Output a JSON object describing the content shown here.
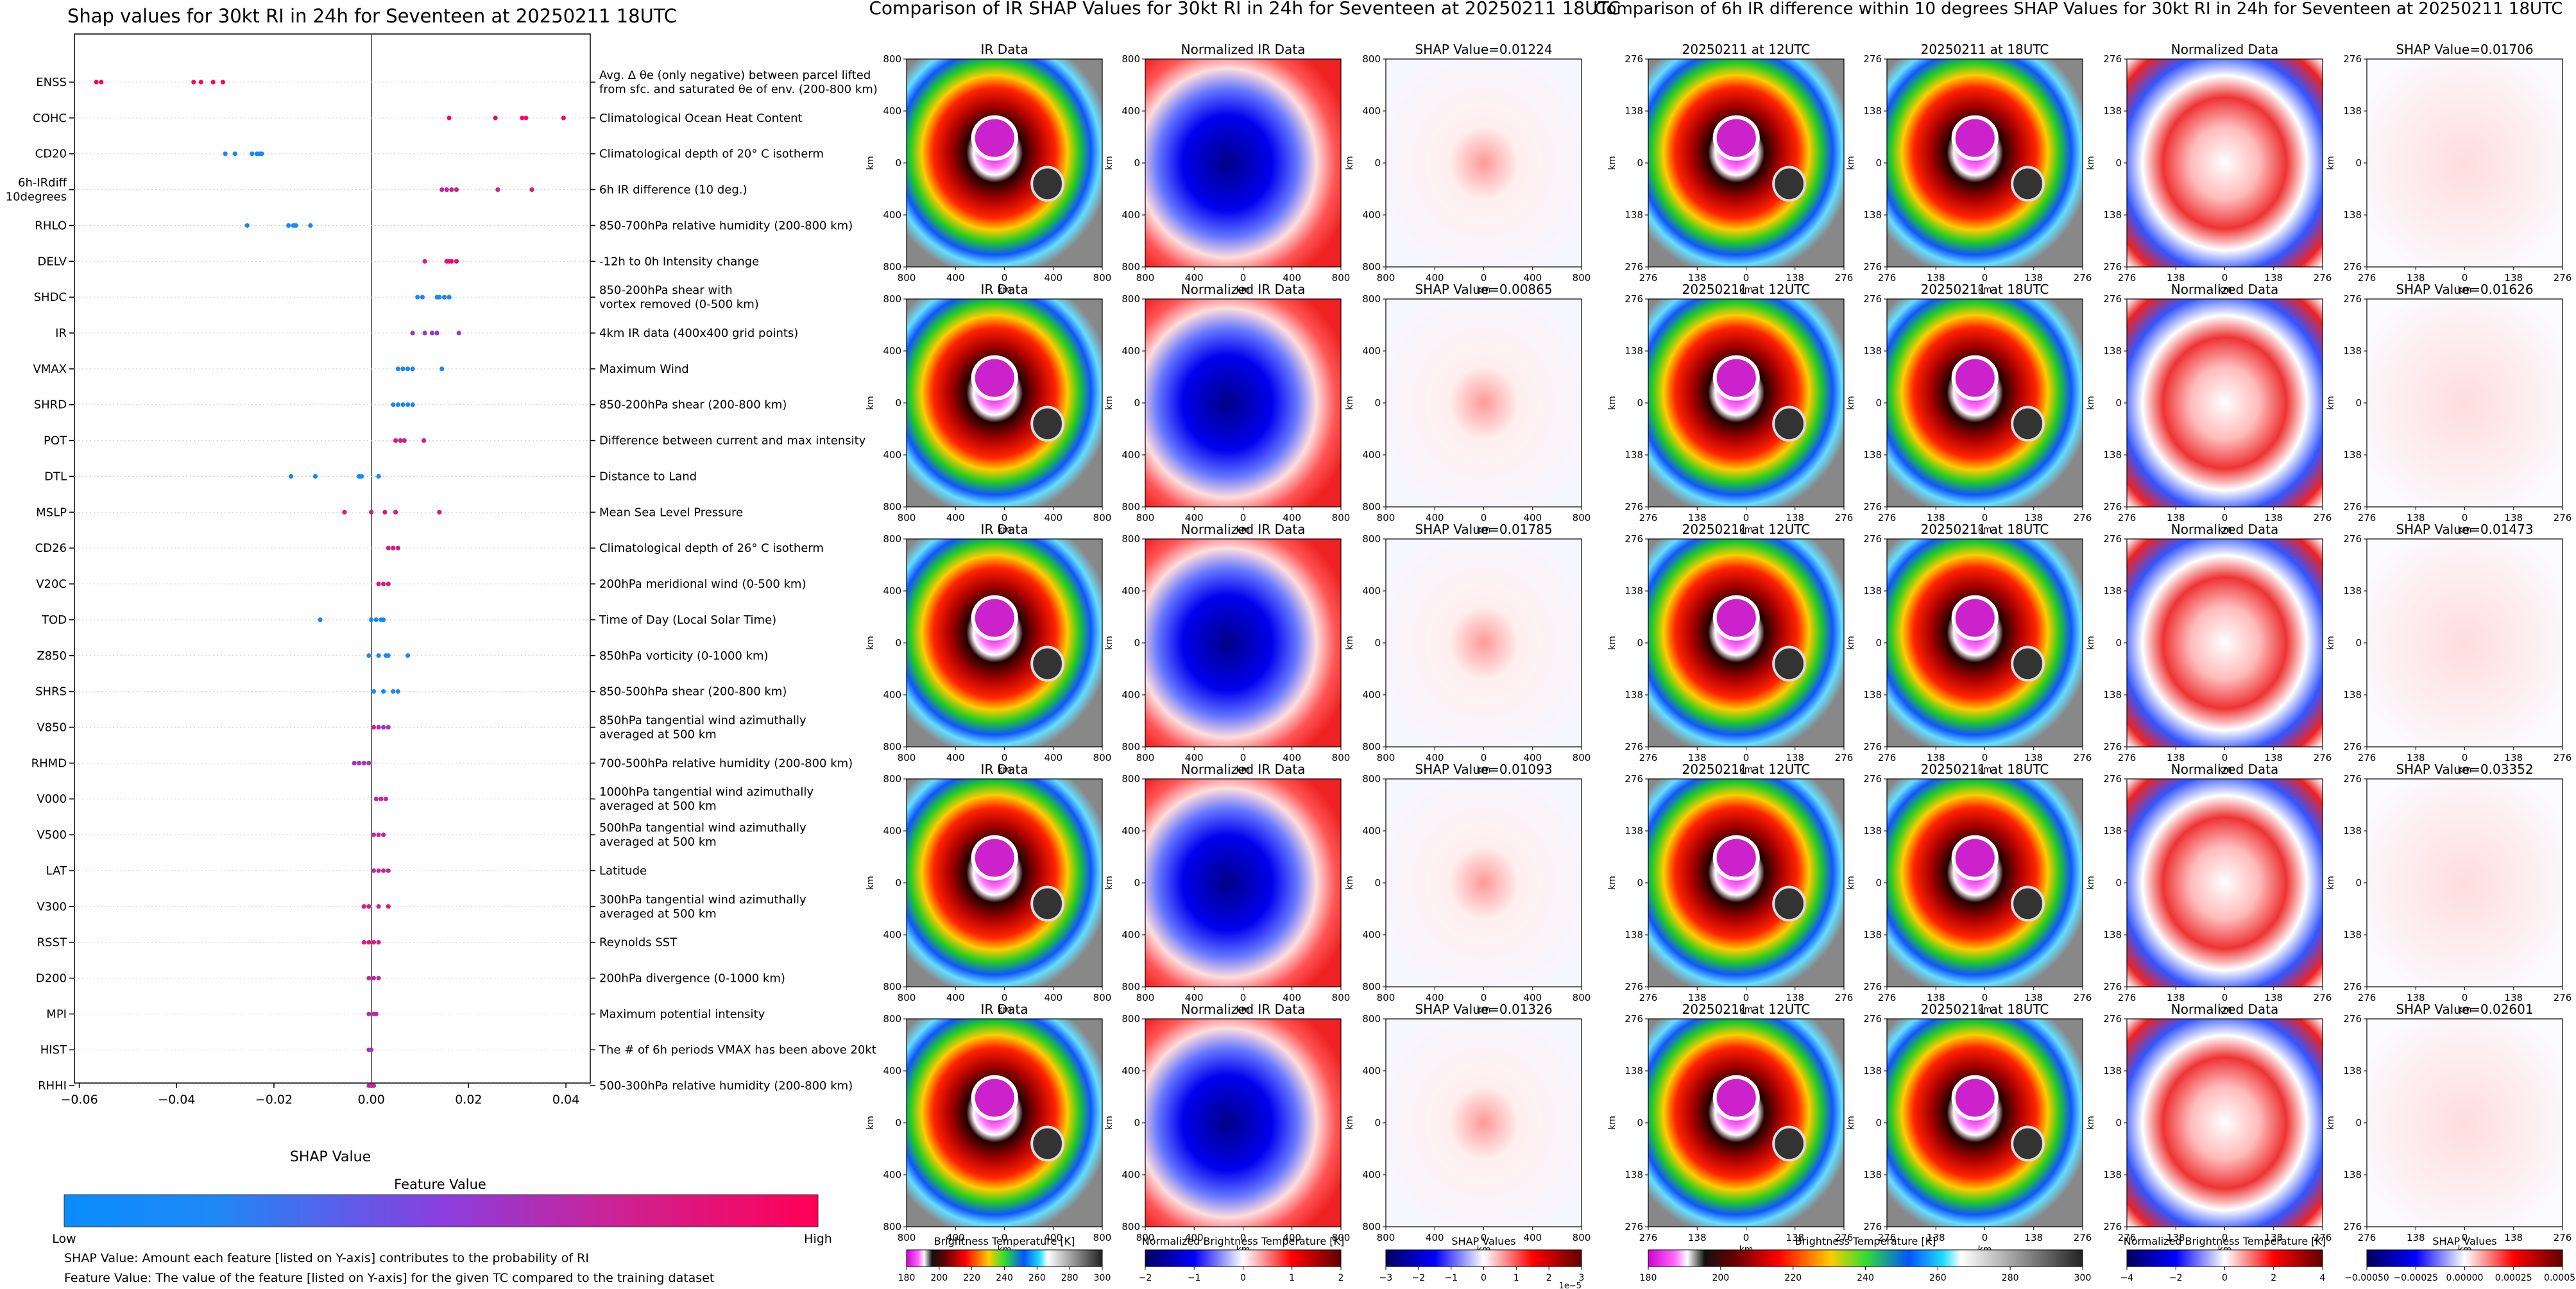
{
  "left_panel": {
    "title": "Shap values for 30kt RI in 24h for Seventeen at 20250211 18UTC",
    "xlabel": "SHAP Value",
    "colorbar_title": "Feature Value",
    "colorbar_low": "Low",
    "colorbar_high": "High",
    "note1": "SHAP Value: Amount each feature [listed on Y-axis] contributes to the probability of RI",
    "note2": "Feature Value: The value of the feature [listed on Y-axis] for the given TC compared to the training dataset"
  },
  "middle_panel": {
    "title": "Comparison of IR SHAP Values for 30kt RI in 24h for Seventeen at 20250211 18UTC",
    "col_titles": [
      "IR Data",
      "Normalized IR Data"
    ],
    "shap_titles": [
      "SHAP Value=0.01224",
      "SHAP Value=0.00865",
      "SHAP Value=0.01785",
      "SHAP Value=0.01093",
      "SHAP Value=0.01326"
    ],
    "axis_label": "km",
    "ticks": [
      "800",
      "400",
      "0",
      "400",
      "800"
    ],
    "cbars": [
      {
        "label": "Brightness Temperature [K]",
        "ticks": [
          "180",
          "200",
          "220",
          "240",
          "260",
          "280",
          "300"
        ]
      },
      {
        "label": "Normalized Brightness Temperature [K]",
        "ticks": [
          "−2",
          "−1",
          "0",
          "1",
          "2"
        ]
      },
      {
        "label": "SHAP Values",
        "ticks": [
          "−3",
          "−2",
          "−1",
          "0",
          "1",
          "2",
          "3"
        ],
        "offset": "1e−5"
      }
    ]
  },
  "right_panel": {
    "title": "Comparison of 6h IR difference within 10 degrees SHAP Values for 30kt RI in 24h for Seventeen at 20250211 18UTC",
    "col_titles": [
      "20250211 at 12UTC",
      "20250211 at 18UTC",
      "Normalized Data"
    ],
    "shap_titles": [
      "SHAP Value=0.01706",
      "SHAP Value=0.01626",
      "SHAP Value=0.01473",
      "SHAP Value=0.03352",
      "SHAP Value=0.02601"
    ],
    "axis_label": "km",
    "ticks": [
      "276",
      "138",
      "0",
      "138",
      "276"
    ],
    "cbars": [
      {
        "label": "Brightness Temperature [K]",
        "ticks": [
          "180",
          "200",
          "220",
          "240",
          "260",
          "280",
          "300"
        ]
      },
      {
        "label": "Normalized Brightness Temperature [K]",
        "ticks": [
          "−4",
          "−2",
          "0",
          "2",
          "4"
        ]
      },
      {
        "label": "SHAP Values",
        "ticks": [
          "−0.00050",
          "−0.00025",
          "0.00000",
          "0.00025",
          "0.00050"
        ]
      }
    ]
  },
  "chart_data": {
    "type": "scatter",
    "title": "Shap values for 30kt RI in 24h for Seventeen at 20250211 18UTC",
    "xlabel": "SHAP Value",
    "xlim": [
      -0.061,
      0.045
    ],
    "xticks": [
      -0.06,
      -0.04,
      -0.02,
      0.0,
      0.02,
      0.04
    ],
    "xtick_labels": [
      "−0.06",
      "−0.04",
      "−0.02",
      "0.00",
      "0.02",
      "0.04"
    ],
    "grid": "horizontal dotted",
    "features": [
      {
        "name": "ENSS",
        "desc": [
          "Avg. Δ θe (only negative) between parcel lifted",
          "from sfc. and saturated θe of env. (200-800 km)"
        ],
        "points": [
          [
            -0.0565,
            1.0
          ],
          [
            -0.0555,
            0.98
          ],
          [
            -0.0365,
            0.98
          ],
          [
            -0.035,
            0.96
          ],
          [
            -0.0325,
            0.97
          ],
          [
            -0.0305,
            1.0
          ]
        ]
      },
      {
        "name": "COHC",
        "desc": [
          "Climatological Ocean Heat Content"
        ],
        "points": [
          [
            0.016,
            0.92
          ],
          [
            0.0255,
            0.95
          ],
          [
            0.031,
            0.93
          ],
          [
            0.0318,
            0.95
          ],
          [
            0.0395,
            0.97
          ]
        ]
      },
      {
        "name": "CD20",
        "desc": [
          "Climatological depth of 20° C isotherm"
        ],
        "points": [
          [
            -0.03,
            0.05
          ],
          [
            -0.028,
            0.05
          ],
          [
            -0.0245,
            0.1
          ],
          [
            -0.0235,
            0.08
          ],
          [
            -0.023,
            0.1
          ],
          [
            -0.0225,
            0.09
          ]
        ]
      },
      {
        "name": "6h-IRdiff\n10degrees",
        "desc": [
          "6h IR difference (10 deg.)"
        ],
        "points": [
          [
            0.0145,
            0.7
          ],
          [
            0.0155,
            0.7
          ],
          [
            0.0165,
            0.72
          ],
          [
            0.0175,
            0.7
          ],
          [
            0.026,
            0.75
          ],
          [
            0.033,
            0.78
          ]
        ]
      },
      {
        "name": "RHLO",
        "desc": [
          "850-700hPa relative humidity (200-800 km)"
        ],
        "points": [
          [
            -0.0255,
            0.1
          ],
          [
            -0.017,
            0.08
          ],
          [
            -0.016,
            0.06
          ],
          [
            -0.0155,
            0.1
          ],
          [
            -0.0125,
            0.08
          ]
        ]
      },
      {
        "name": "DELV",
        "desc": [
          "-12h to 0h Intensity change"
        ],
        "points": [
          [
            0.011,
            0.75
          ],
          [
            0.0155,
            0.9
          ],
          [
            0.016,
            0.9
          ],
          [
            0.0165,
            0.92
          ],
          [
            0.0175,
            0.9
          ]
        ]
      },
      {
        "name": "SHDC",
        "desc": [
          "850-200hPa shear with",
          "vortex removed (0-500 km)"
        ],
        "points": [
          [
            0.0095,
            0.2
          ],
          [
            0.0105,
            0.2
          ],
          [
            0.0135,
            0.15
          ],
          [
            0.014,
            0.15
          ],
          [
            0.015,
            0.15
          ],
          [
            0.016,
            0.15
          ]
        ]
      },
      {
        "name": "IR",
        "desc": [
          "4km IR data (400x400 grid points)"
        ],
        "points": [
          [
            0.0085,
            0.55
          ],
          [
            0.011,
            0.55
          ],
          [
            0.0125,
            0.55
          ],
          [
            0.0135,
            0.55
          ],
          [
            0.018,
            0.5
          ]
        ]
      },
      {
        "name": "VMAX",
        "desc": [
          "Maximum Wind"
        ],
        "points": [
          [
            0.0055,
            0.2
          ],
          [
            0.0065,
            0.2
          ],
          [
            0.0075,
            0.2
          ],
          [
            0.0085,
            0.2
          ],
          [
            0.0145,
            0.15
          ]
        ]
      },
      {
        "name": "SHRD",
        "desc": [
          "850-200hPa shear (200-800 km)"
        ],
        "points": [
          [
            0.0045,
            0.2
          ],
          [
            0.0055,
            0.2
          ],
          [
            0.0065,
            0.2
          ],
          [
            0.0075,
            0.2
          ],
          [
            0.0085,
            0.2
          ]
        ]
      },
      {
        "name": "POT",
        "desc": [
          "Difference between current and max intensity"
        ],
        "points": [
          [
            0.005,
            0.8
          ],
          [
            0.006,
            0.8
          ],
          [
            0.0068,
            0.8
          ],
          [
            0.0108,
            0.75
          ]
        ]
      },
      {
        "name": "DTL",
        "desc": [
          "Distance to Land"
        ],
        "points": [
          [
            -0.0165,
            0.1
          ],
          [
            -0.0115,
            0.1
          ],
          [
            -0.0025,
            0.1
          ],
          [
            -0.002,
            0.1
          ],
          [
            0.0015,
            0.1
          ]
        ]
      },
      {
        "name": "MSLP",
        "desc": [
          "Mean Sea Level Pressure"
        ],
        "points": [
          [
            -0.0055,
            0.8
          ],
          [
            0.0,
            0.8
          ],
          [
            0.0028,
            0.8
          ],
          [
            0.005,
            0.8
          ],
          [
            0.014,
            0.8
          ]
        ]
      },
      {
        "name": "CD26",
        "desc": [
          "Climatological depth of 26° C isotherm"
        ],
        "points": [
          [
            0.0035,
            0.8
          ],
          [
            0.0045,
            0.8
          ],
          [
            0.0055,
            0.8
          ]
        ]
      },
      {
        "name": "V20C",
        "desc": [
          "200hPa meridional wind (0-500 km)"
        ],
        "points": [
          [
            0.0015,
            0.8
          ],
          [
            0.0025,
            0.8
          ],
          [
            0.0035,
            0.8
          ]
        ]
      },
      {
        "name": "TOD",
        "desc": [
          "Time of Day (Local Solar Time)"
        ],
        "points": [
          [
            -0.0105,
            0.1
          ],
          [
            0.0,
            0.1
          ],
          [
            0.001,
            0.1
          ],
          [
            0.002,
            0.1
          ],
          [
            0.0025,
            0.1
          ]
        ]
      },
      {
        "name": "Z850",
        "desc": [
          "850hPa vorticity (0-1000 km)"
        ],
        "points": [
          [
            -0.0005,
            0.15
          ],
          [
            0.0015,
            0.1
          ],
          [
            0.003,
            0.1
          ],
          [
            0.0035,
            0.1
          ],
          [
            0.0075,
            0.1
          ]
        ]
      },
      {
        "name": "SHRS",
        "desc": [
          "850-500hPa shear (200-800 km)"
        ],
        "points": [
          [
            0.0005,
            0.15
          ],
          [
            0.0025,
            0.15
          ],
          [
            0.0045,
            0.15
          ],
          [
            0.0055,
            0.15
          ]
        ]
      },
      {
        "name": "V850",
        "desc": [
          "850hPa tangential wind azimuthally",
          "averaged at 500 km"
        ],
        "points": [
          [
            0.0005,
            0.8
          ],
          [
            0.0015,
            0.7
          ],
          [
            0.0025,
            0.6
          ],
          [
            0.0035,
            0.6
          ]
        ]
      },
      {
        "name": "RHMD",
        "desc": [
          "700-500hPa relative humidity (200-800 km)"
        ],
        "points": [
          [
            -0.0035,
            0.6
          ],
          [
            -0.0025,
            0.6
          ],
          [
            -0.0015,
            0.6
          ],
          [
            -0.0005,
            0.6
          ]
        ]
      },
      {
        "name": "V000",
        "desc": [
          "1000hPa tangential wind azimuthally",
          "averaged at 500 km"
        ],
        "points": [
          [
            0.001,
            0.7
          ],
          [
            0.002,
            0.7
          ],
          [
            0.003,
            0.7
          ]
        ]
      },
      {
        "name": "V500",
        "desc": [
          "500hPa tangential wind azimuthally",
          "averaged at 500 km"
        ],
        "points": [
          [
            0.0005,
            0.7
          ],
          [
            0.0015,
            0.7
          ],
          [
            0.0025,
            0.7
          ]
        ]
      },
      {
        "name": "LAT",
        "desc": [
          "Latitude"
        ],
        "points": [
          [
            0.0005,
            0.7
          ],
          [
            0.0015,
            0.7
          ],
          [
            0.0025,
            0.7
          ],
          [
            0.0035,
            0.7
          ]
        ]
      },
      {
        "name": "V300",
        "desc": [
          "300hPa tangential wind azimuthally",
          "averaged at 500 km"
        ],
        "points": [
          [
            -0.0015,
            0.8
          ],
          [
            -0.0005,
            0.8
          ],
          [
            0.0015,
            0.7
          ],
          [
            0.0035,
            0.8
          ]
        ]
      },
      {
        "name": "RSST",
        "desc": [
          "Reynolds SST"
        ],
        "points": [
          [
            -0.0015,
            0.8
          ],
          [
            -0.0005,
            0.8
          ],
          [
            0.0005,
            0.8
          ],
          [
            0.0015,
            0.8
          ]
        ]
      },
      {
        "name": "D200",
        "desc": [
          "200hPa divergence (0-1000 km)"
        ],
        "points": [
          [
            -0.0005,
            0.7
          ],
          [
            0.0005,
            0.7
          ],
          [
            0.0015,
            0.7
          ]
        ]
      },
      {
        "name": "MPI",
        "desc": [
          "Maximum potential intensity"
        ],
        "points": [
          [
            -0.0005,
            0.7
          ],
          [
            0.0005,
            0.7
          ],
          [
            0.001,
            0.7
          ]
        ]
      },
      {
        "name": "HIST",
        "desc": [
          "The # of 6h periods VMAX has been above 20kt"
        ],
        "points": [
          [
            -0.0005,
            0.6
          ],
          [
            0.0,
            0.6
          ]
        ]
      },
      {
        "name": "RHHI",
        "desc": [
          "500-300hPa relative humidity (200-800 km)"
        ],
        "points": [
          [
            -0.0005,
            0.7
          ],
          [
            0.0,
            0.7
          ],
          [
            0.0005,
            0.7
          ]
        ]
      }
    ]
  }
}
